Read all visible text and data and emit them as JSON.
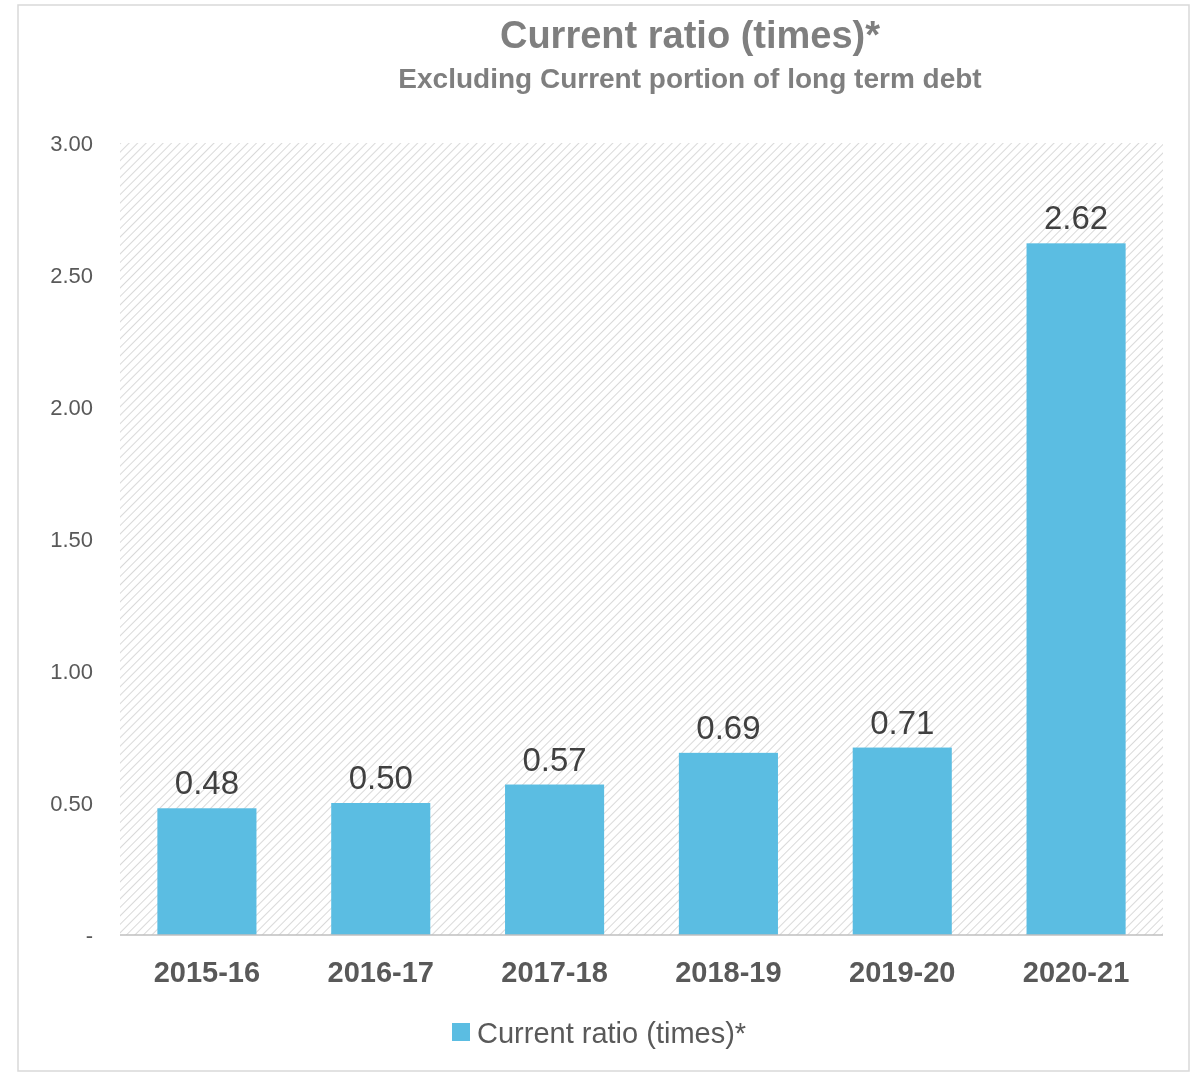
{
  "chart_data": {
    "type": "bar",
    "title": "Current ratio (times)*",
    "subtitle": "Excluding Current portion of long term debt",
    "categories": [
      "2015-16",
      "2016-17",
      "2017-18",
      "2018-19",
      "2019-20",
      "2020-21"
    ],
    "series": [
      {
        "name": "Current ratio (times)*",
        "color": "#5bbde2",
        "values": [
          0.48,
          0.5,
          0.57,
          0.69,
          0.71,
          2.62
        ]
      }
    ],
    "value_labels": [
      "0.48",
      "0.50",
      "0.57",
      "0.69",
      "0.71",
      "2.62"
    ],
    "ylim": [
      0,
      3
    ],
    "yticks": [
      {
        "value": 0,
        "label": "-"
      },
      {
        "value": 0.5,
        "label": "0.50"
      },
      {
        "value": 1,
        "label": "1.00"
      },
      {
        "value": 1.5,
        "label": "1.50"
      },
      {
        "value": 2,
        "label": "2.00"
      },
      {
        "value": 2.5,
        "label": "2.50"
      },
      {
        "value": 3,
        "label": "3.00"
      }
    ],
    "legend": "bottom",
    "grid": false
  }
}
